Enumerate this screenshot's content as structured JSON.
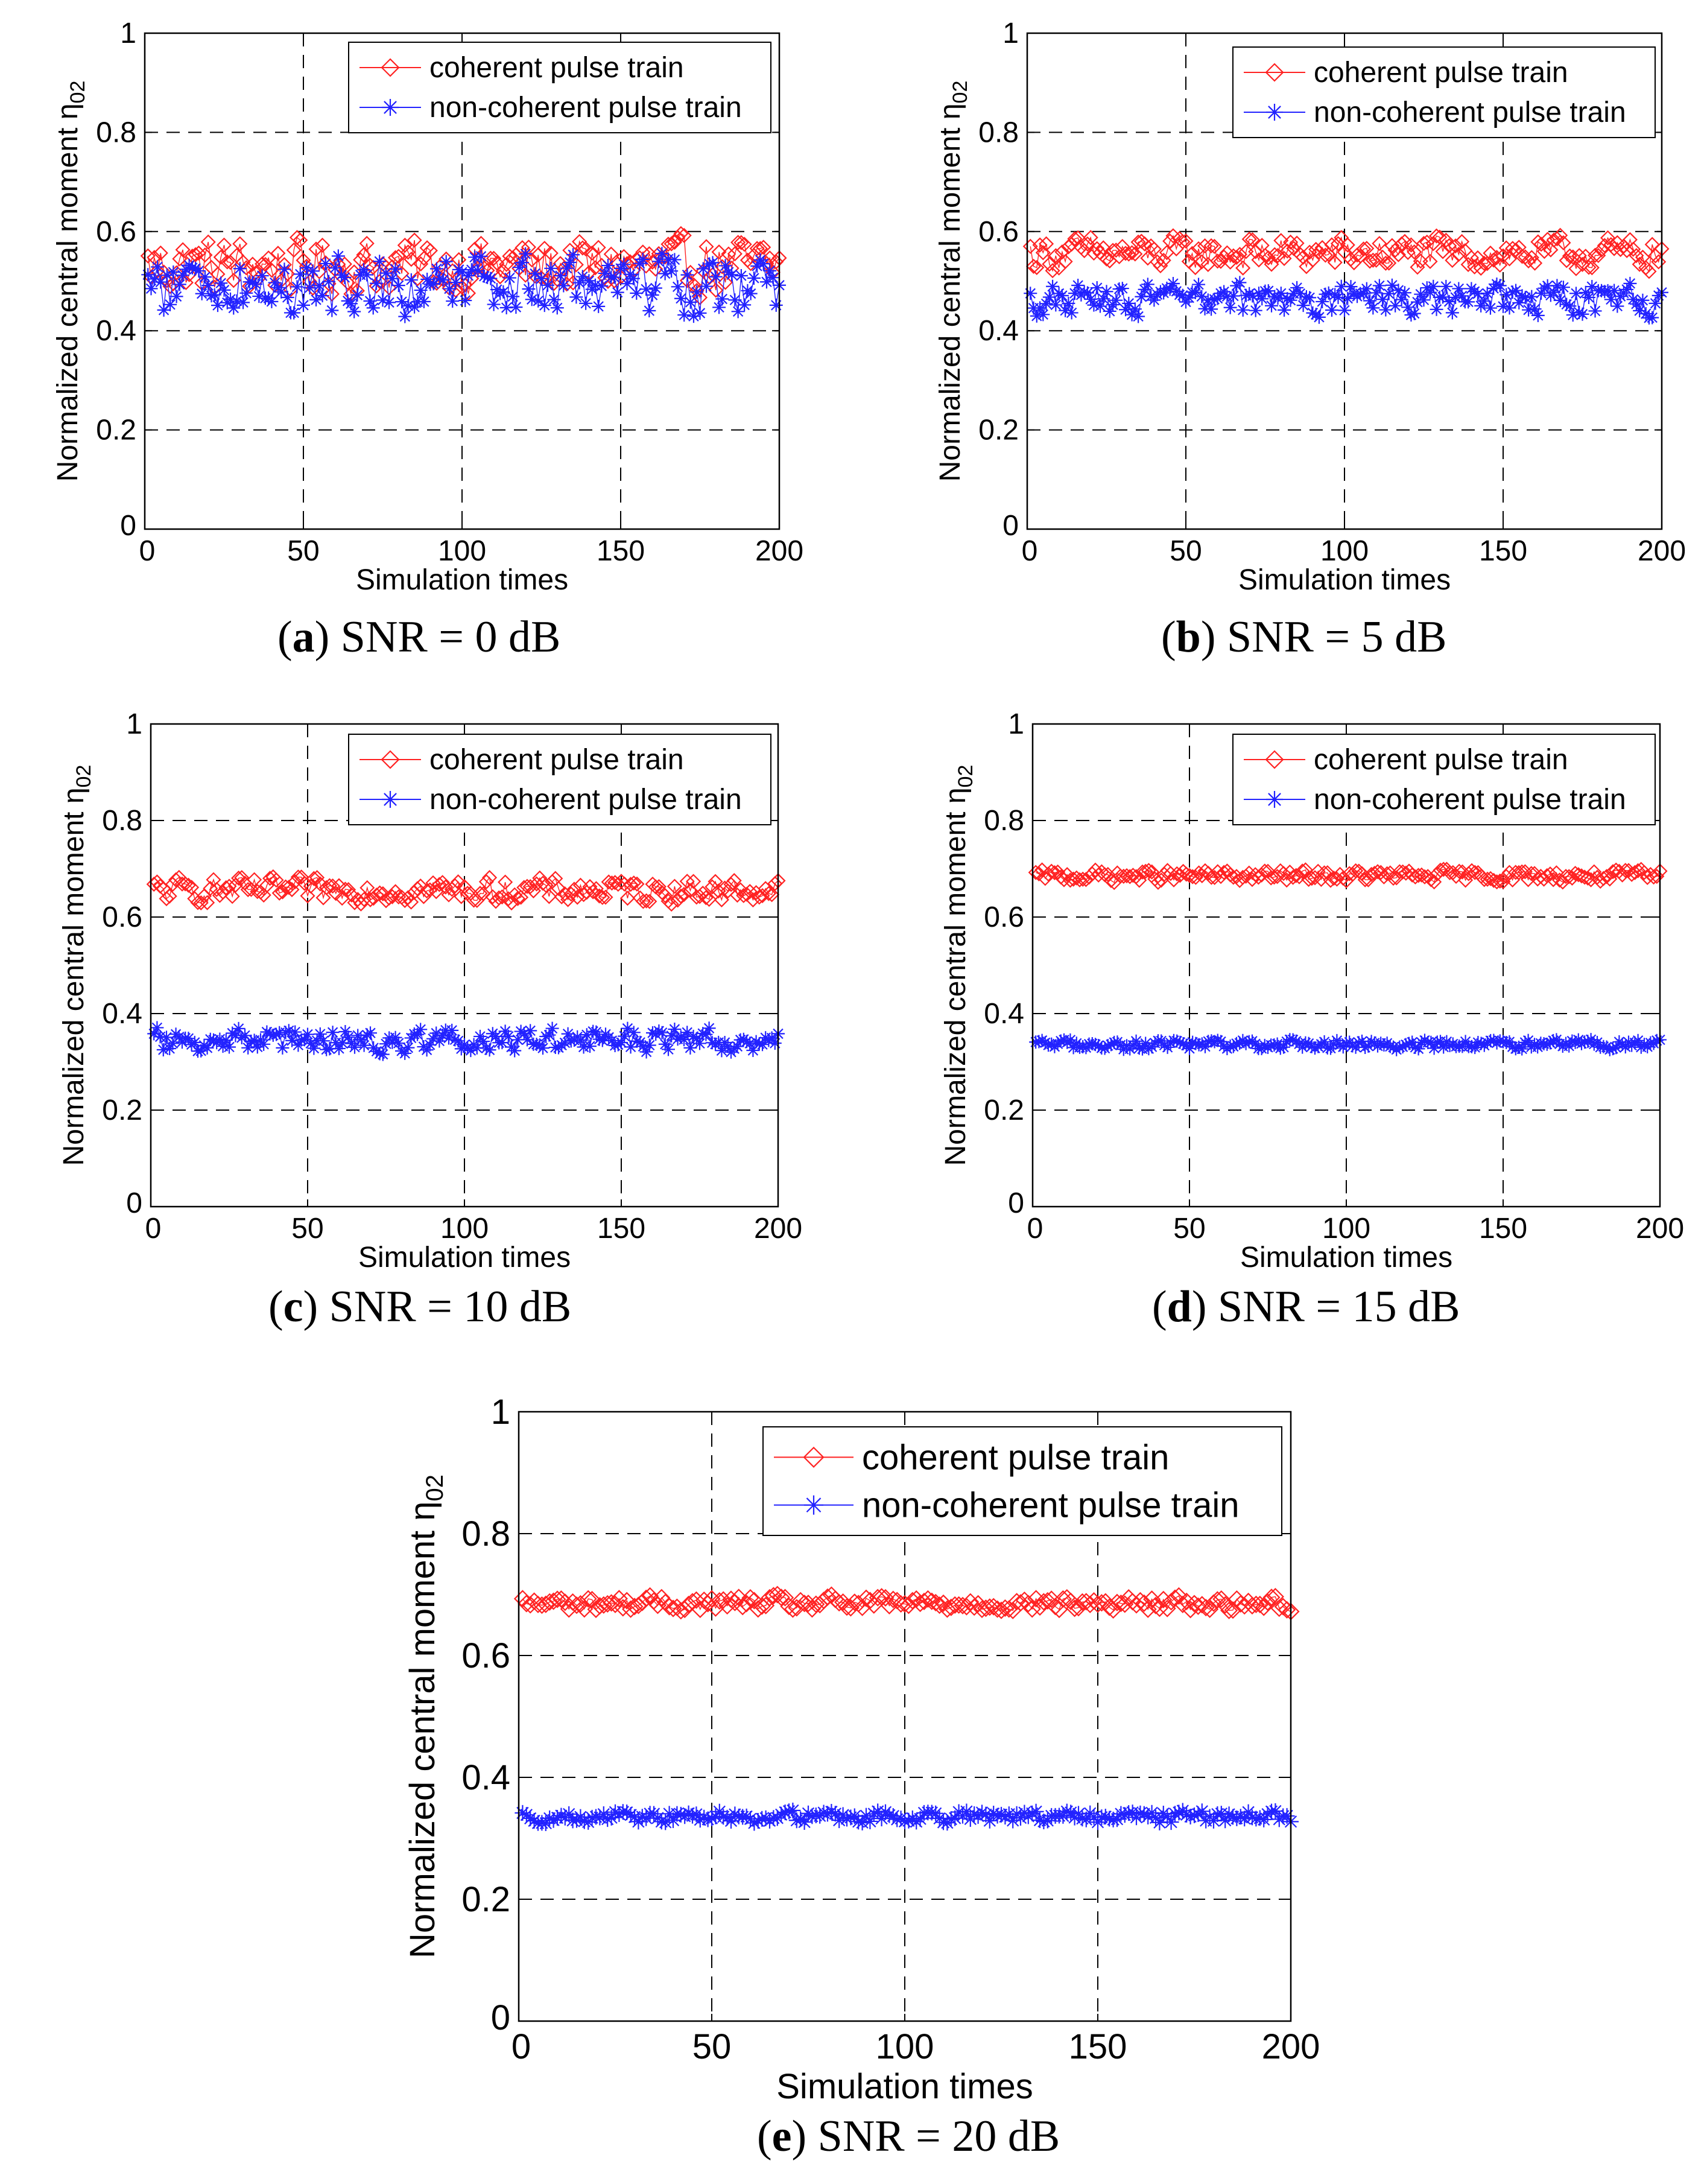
{
  "figure": {
    "series_colors": {
      "coherent": "#ff2222",
      "non_coherent": "#2222ff"
    },
    "marker_icons": {
      "coherent": "diamond-icon",
      "non_coherent": "asterisk-icon"
    }
  },
  "chart_data": [
    {
      "id": "a",
      "type": "line",
      "caption_letter": "a",
      "caption_open": "(",
      "caption_rest": ") SNR = 0 dB",
      "xlabel": "Simulation times",
      "ylabel": "Normalized central moment η",
      "ylabel_sub": "02",
      "xlim": [
        0,
        200
      ],
      "ylim": [
        0,
        1
      ],
      "xticks": [
        0,
        50,
        100,
        150,
        200
      ],
      "xtick_labels": [
        "0",
        "50",
        "100",
        "150",
        "200"
      ],
      "yticks": [
        0,
        0.2,
        0.4,
        0.6,
        0.8,
        1
      ],
      "ytick_labels": [
        "0",
        "0.2",
        "0.4",
        "0.6",
        "0.8",
        "1"
      ],
      "grid": true,
      "legend_loc": "top-right",
      "series": [
        {
          "name": "coherent pulse train",
          "marker": "diamond",
          "mean": 0.53,
          "spread": 0.065,
          "min": 0.45,
          "max": 0.61
        },
        {
          "name": "non-coherent pulse train",
          "marker": "asterisk",
          "mean": 0.49,
          "spread": 0.07,
          "min": 0.4,
          "max": 0.58
        }
      ]
    },
    {
      "id": "b",
      "type": "line",
      "caption_letter": "b",
      "caption_open": "(",
      "caption_rest": ") SNR = 5 dB",
      "xlabel": "Simulation times",
      "ylabel": "Normalized central moment η",
      "ylabel_sub": "02",
      "xlim": [
        0,
        200
      ],
      "ylim": [
        0,
        1
      ],
      "xticks": [
        0,
        50,
        100,
        150,
        200
      ],
      "xtick_labels": [
        "0",
        "50",
        "100",
        "150",
        "200"
      ],
      "yticks": [
        0,
        0.2,
        0.4,
        0.6,
        0.8,
        1
      ],
      "ytick_labels": [
        "0",
        "0.2",
        "0.4",
        "0.6",
        "0.8",
        "1"
      ],
      "grid": true,
      "legend_loc": "top-right",
      "series": [
        {
          "name": "coherent pulse train",
          "marker": "diamond",
          "mean": 0.555,
          "spread": 0.04,
          "min": 0.49,
          "max": 0.6
        },
        {
          "name": "non-coherent pulse train",
          "marker": "asterisk",
          "mean": 0.46,
          "spread": 0.04,
          "min": 0.4,
          "max": 0.52
        }
      ]
    },
    {
      "id": "c",
      "type": "line",
      "caption_letter": "c",
      "caption_open": "(",
      "caption_rest": ") SNR = 10 dB",
      "xlabel": "Simulation times",
      "ylabel": "Normalized central moment η",
      "ylabel_sub": "02",
      "xlim": [
        0,
        200
      ],
      "ylim": [
        0,
        1
      ],
      "xticks": [
        0,
        50,
        100,
        150,
        200
      ],
      "xtick_labels": [
        "0",
        "50",
        "100",
        "150",
        "200"
      ],
      "yticks": [
        0,
        0.2,
        0.4,
        0.6,
        0.8,
        1
      ],
      "ytick_labels": [
        "0",
        "0.2",
        "0.4",
        "0.6",
        "0.8",
        "1"
      ],
      "grid": true,
      "legend_loc": "top-right",
      "series": [
        {
          "name": "coherent pulse train",
          "marker": "diamond",
          "mean": 0.655,
          "spread": 0.03,
          "min": 0.62,
          "max": 0.7
        },
        {
          "name": "non-coherent pulse train",
          "marker": "asterisk",
          "mean": 0.345,
          "spread": 0.03,
          "min": 0.31,
          "max": 0.39
        }
      ]
    },
    {
      "id": "d",
      "type": "line",
      "caption_letter": "d",
      "caption_open": "(",
      "caption_rest": ") SNR = 15 dB",
      "xlabel": "Simulation times",
      "ylabel": "Normalized central moment η",
      "ylabel_sub": "02",
      "xlim": [
        0,
        200
      ],
      "ylim": [
        0,
        1
      ],
      "xticks": [
        0,
        50,
        100,
        150,
        200
      ],
      "xtick_labels": [
        "0",
        "50",
        "100",
        "150",
        "200"
      ],
      "yticks": [
        0,
        0.2,
        0.4,
        0.6,
        0.8,
        1
      ],
      "ytick_labels": [
        "0",
        "0.2",
        "0.4",
        "0.6",
        "0.8",
        "1"
      ],
      "grid": true,
      "legend_loc": "top-right",
      "series": [
        {
          "name": "coherent pulse train",
          "marker": "diamond",
          "mean": 0.685,
          "spread": 0.015,
          "min": 0.66,
          "max": 0.71
        },
        {
          "name": "non-coherent pulse train",
          "marker": "asterisk",
          "mean": 0.335,
          "spread": 0.012,
          "min": 0.31,
          "max": 0.36
        }
      ]
    },
    {
      "id": "e",
      "type": "line",
      "caption_letter": "e",
      "caption_open": "(",
      "caption_rest": ") SNR = 20 dB",
      "xlabel": "Simulation times",
      "ylabel": "Normalized central moment η",
      "ylabel_sub": "02",
      "xlim": [
        0,
        200
      ],
      "ylim": [
        0,
        1
      ],
      "xticks": [
        0,
        50,
        100,
        150,
        200
      ],
      "xtick_labels": [
        "0",
        "50",
        "100",
        "150",
        "200"
      ],
      "yticks": [
        0,
        0.2,
        0.4,
        0.6,
        0.8,
        1
      ],
      "ytick_labels": [
        "0",
        "0.2",
        "0.4",
        "0.6",
        "0.8",
        "1"
      ],
      "grid": true,
      "legend_loc": "top-right",
      "series": [
        {
          "name": "coherent pulse train",
          "marker": "diamond",
          "mean": 0.685,
          "spread": 0.015,
          "min": 0.66,
          "max": 0.71
        },
        {
          "name": "non-coherent pulse train",
          "marker": "asterisk",
          "mean": 0.335,
          "spread": 0.012,
          "min": 0.31,
          "max": 0.36
        }
      ]
    }
  ]
}
